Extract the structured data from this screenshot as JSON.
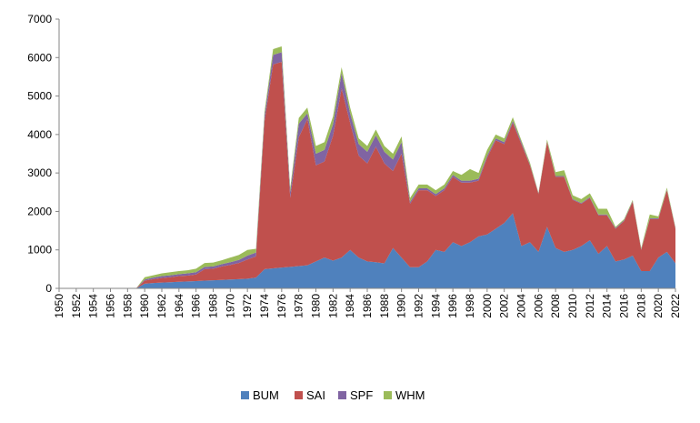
{
  "chart_data": {
    "type": "area",
    "stacked": true,
    "title": "",
    "xlabel": "",
    "ylabel": "",
    "ylim": [
      0,
      7000
    ],
    "yticks": [
      0,
      1000,
      2000,
      3000,
      4000,
      5000,
      6000,
      7000
    ],
    "xlim": [
      1950,
      2022
    ],
    "xticks": [
      1950,
      1952,
      1954,
      1956,
      1958,
      1960,
      1962,
      1964,
      1966,
      1968,
      1970,
      1972,
      1974,
      1976,
      1978,
      1980,
      1982,
      1984,
      1986,
      1988,
      1990,
      1992,
      1994,
      1996,
      1998,
      2000,
      2002,
      2004,
      2006,
      2008,
      2010,
      2012,
      2014,
      2016,
      2018,
      2020,
      2022
    ],
    "grid": false,
    "legend_position": "bottom",
    "x": [
      1950,
      1951,
      1952,
      1953,
      1954,
      1955,
      1956,
      1957,
      1958,
      1959,
      1960,
      1961,
      1962,
      1963,
      1964,
      1965,
      1966,
      1967,
      1968,
      1969,
      1970,
      1971,
      1972,
      1973,
      1974,
      1975,
      1976,
      1977,
      1978,
      1979,
      1980,
      1981,
      1982,
      1983,
      1984,
      1985,
      1986,
      1987,
      1988,
      1989,
      1990,
      1991,
      1992,
      1993,
      1994,
      1995,
      1996,
      1997,
      1998,
      1999,
      2000,
      2001,
      2002,
      2003,
      2004,
      2005,
      2006,
      2007,
      2008,
      2009,
      2010,
      2011,
      2012,
      2013,
      2014,
      2015,
      2016,
      2017,
      2018,
      2019,
      2020,
      2021,
      2022
    ],
    "series": [
      {
        "name": "BUM",
        "color": "#4f81bd",
        "values": [
          0,
          0,
          0,
          0,
          0,
          0,
          0,
          0,
          0,
          0,
          120,
          140,
          150,
          160,
          170,
          180,
          190,
          200,
          210,
          220,
          230,
          240,
          250,
          280,
          500,
          520,
          540,
          560,
          580,
          600,
          700,
          800,
          720,
          800,
          1000,
          800,
          700,
          680,
          650,
          1050,
          800,
          550,
          550,
          700,
          1000,
          950,
          1200,
          1100,
          1200,
          1350,
          1400,
          1550,
          1700,
          1950,
          1100,
          1200,
          950,
          1600,
          1050,
          950,
          1000,
          1100,
          1250,
          900,
          1100,
          700,
          750,
          850,
          450,
          450,
          800,
          950,
          650
        ]
      },
      {
        "name": "SAI",
        "color": "#c0504d",
        "values": [
          0,
          0,
          0,
          0,
          0,
          0,
          0,
          0,
          0,
          0,
          80,
          100,
          120,
          130,
          150,
          150,
          170,
          300,
          300,
          350,
          380,
          420,
          500,
          550,
          3850,
          5300,
          5350,
          1800,
          3350,
          3800,
          2500,
          2500,
          3250,
          4400,
          3300,
          2650,
          2550,
          3000,
          2600,
          2000,
          2700,
          1650,
          2000,
          1850,
          1400,
          1600,
          1700,
          1650,
          1550,
          1450,
          2000,
          2300,
          2050,
          2350,
          2650,
          2000,
          1500,
          2200,
          1850,
          1950,
          1300,
          1100,
          1100,
          1000,
          800,
          850,
          1000,
          1400,
          550,
          1350,
          1000,
          1600,
          900
        ]
      },
      {
        "name": "SPF",
        "color": "#8064a2",
        "values": [
          0,
          0,
          0,
          0,
          0,
          0,
          0,
          0,
          0,
          0,
          30,
          40,
          50,
          50,
          50,
          60,
          60,
          60,
          60,
          60,
          70,
          80,
          100,
          100,
          150,
          250,
          250,
          150,
          350,
          150,
          300,
          300,
          300,
          400,
          250,
          300,
          300,
          300,
          300,
          300,
          300,
          50,
          50,
          50,
          50,
          50,
          50,
          50,
          50,
          50,
          50,
          50,
          50,
          50,
          50,
          20,
          20,
          20,
          20,
          20,
          20,
          20,
          20,
          20,
          20,
          20,
          20,
          20,
          20,
          20,
          20,
          20,
          20
        ]
      },
      {
        "name": "WHM",
        "color": "#9bbb59",
        "values": [
          0,
          0,
          0,
          0,
          0,
          0,
          0,
          0,
          0,
          0,
          60,
          60,
          70,
          80,
          80,
          80,
          90,
          100,
          100,
          100,
          120,
          130,
          150,
          100,
          100,
          150,
          150,
          100,
          150,
          150,
          200,
          200,
          200,
          150,
          150,
          150,
          150,
          150,
          150,
          150,
          150,
          100,
          100,
          100,
          100,
          100,
          100,
          150,
          300,
          150,
          150,
          100,
          100,
          100,
          50,
          50,
          20,
          50,
          100,
          150,
          100,
          100,
          100,
          150,
          150,
          30,
          30,
          30,
          30,
          100,
          50,
          50,
          20
        ]
      }
    ]
  }
}
